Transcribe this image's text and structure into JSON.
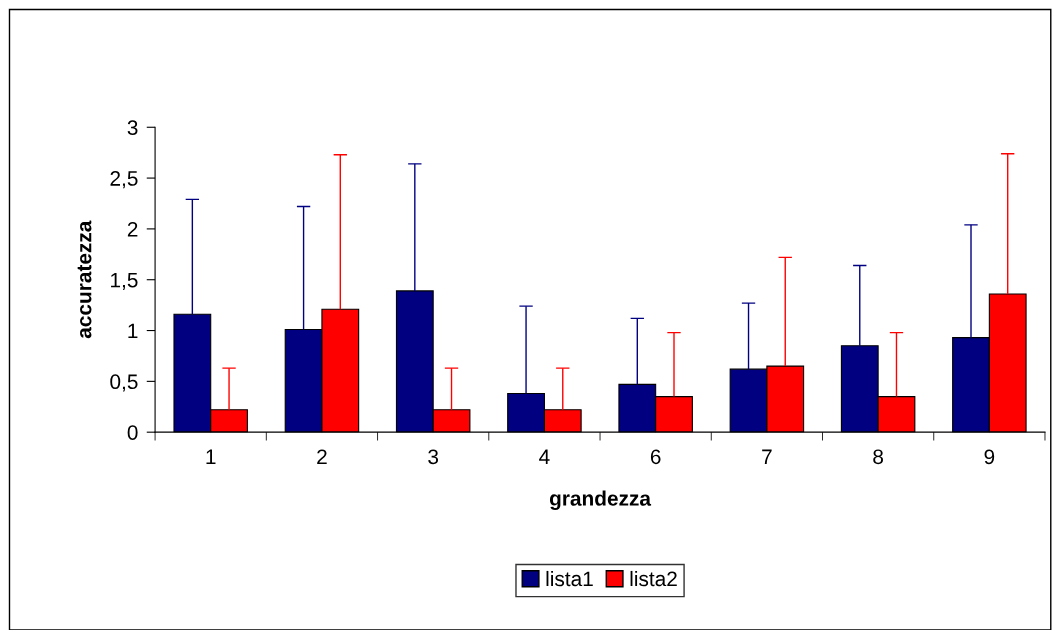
{
  "chart_data": {
    "type": "bar",
    "xlabel": "grandezza",
    "ylabel": "accuratezza",
    "categories": [
      "1",
      "2",
      "3",
      "4",
      "6",
      "7",
      "8",
      "9"
    ],
    "series": [
      {
        "name": "lista1",
        "color": "#000080",
        "values": [
          1.16,
          1.01,
          1.39,
          0.38,
          0.47,
          0.62,
          0.85,
          0.93
        ],
        "errors": [
          [
            1.16,
            2.29
          ],
          [
            1.01,
            2.22
          ],
          [
            1.39,
            2.64
          ],
          [
            0.38,
            1.24
          ],
          [
            0.47,
            1.12
          ],
          [
            0.62,
            1.27
          ],
          [
            0.85,
            1.64
          ],
          [
            0.93,
            2.04
          ]
        ]
      },
      {
        "name": "lista2",
        "color": "#ff0000",
        "values": [
          0.22,
          1.21,
          0.22,
          0.22,
          0.35,
          0.65,
          0.35,
          1.36
        ],
        "errors": [
          [
            0.22,
            0.63
          ],
          [
            1.21,
            2.73
          ],
          [
            0.22,
            0.63
          ],
          [
            0.22,
            0.63
          ],
          [
            0.35,
            0.98
          ],
          [
            0.65,
            1.72
          ],
          [
            0.35,
            0.98
          ],
          [
            1.36,
            2.74
          ]
        ]
      }
    ],
    "ylim": [
      0,
      3
    ],
    "yticks": [
      0,
      {
        "value": 0.5,
        "label": "0,5"
      },
      1,
      {
        "value": 1.5,
        "label": "1,5"
      },
      2,
      {
        "value": 2.5,
        "label": "2,5"
      },
      3
    ],
    "grid": false,
    "legend": "bottom"
  }
}
